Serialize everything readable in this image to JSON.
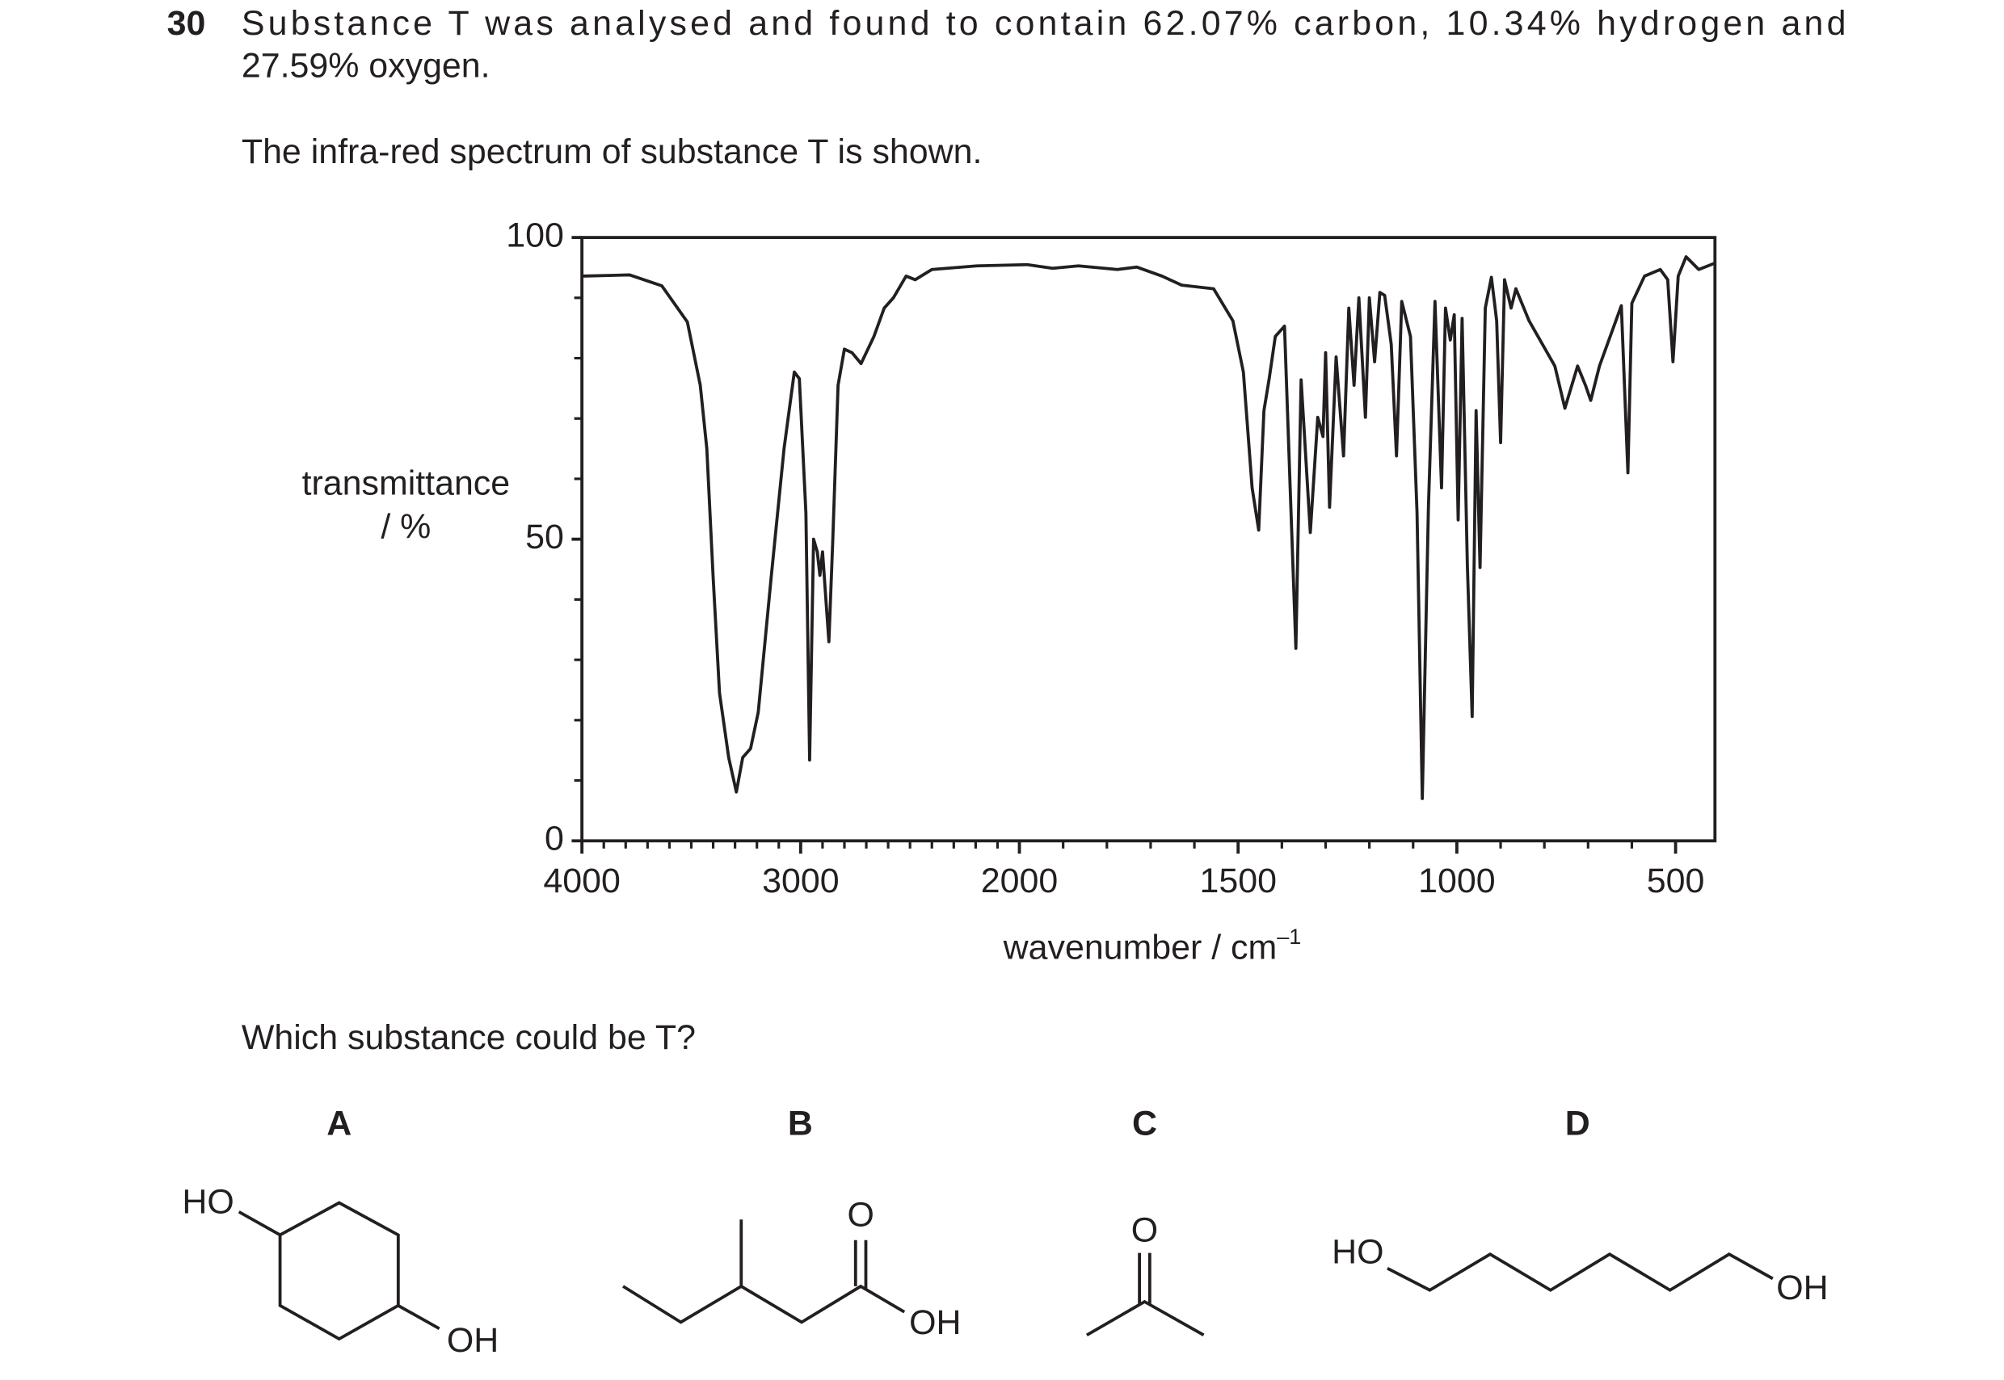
{
  "question": {
    "number": "30",
    "text": [
      "Substance T was analysed and found to contain 62.07% carbon, 10.34% hydrogen and",
      "27.59% oxygen."
    ],
    "intro": "The infra-red spectrum of substance T is shown.",
    "prompt": "Which substance could be T?"
  },
  "chart_data": {
    "type": "line",
    "color": "#231f20",
    "ylabel": [
      "transmittance",
      "/ %"
    ],
    "xlabel": "wavenumber / cm",
    "xlabel_superscript": "–1",
    "xlim": [
      4000,
      410
    ],
    "x_break": 2000,
    "x_break_scale": 2,
    "xticks": [
      4000,
      3000,
      2000,
      1500,
      1000,
      500
    ],
    "x_minor_ticks": [
      3900,
      3800,
      3700,
      3600,
      3500,
      3400,
      3300,
      3200,
      3100,
      2900,
      2800,
      2700,
      2600,
      2500,
      2400,
      2300,
      2200,
      2100,
      1900,
      1800,
      1700,
      1600,
      1400,
      1300,
      1200,
      1100,
      900,
      800,
      700,
      600
    ],
    "ylim": [
      0,
      100
    ],
    "yticks": [
      0,
      50,
      100
    ],
    "y_minor_ticks": [
      10,
      20,
      30,
      40,
      60,
      70,
      80,
      90
    ],
    "x": [
      4000,
      3782,
      3635,
      3518,
      3459,
      3429,
      3400,
      3371,
      3329,
      3294,
      3265,
      3229,
      3194,
      3135,
      3076,
      3029,
      3006,
      2976,
      2959,
      2941,
      2924,
      2912,
      2900,
      2871,
      2853,
      2829,
      2800,
      2765,
      2724,
      2665,
      2618,
      2576,
      2518,
      2476,
      2400,
      2194,
      1982,
      1924,
      1865,
      1776,
      1732,
      1674,
      1629,
      1556,
      1512,
      1488,
      1468,
      1453,
      1441,
      1429,
      1415,
      1394,
      1379,
      1368,
      1356,
      1335,
      1318,
      1306,
      1300,
      1291,
      1276,
      1259,
      1247,
      1235,
      1224,
      1209,
      1200,
      1188,
      1176,
      1165,
      1150,
      1138,
      1126,
      1106,
      1091,
      1079,
      1065,
      1050,
      1035,
      1026,
      1015,
      1006,
      997,
      988,
      976,
      965,
      956,
      947,
      935,
      921,
      909,
      900,
      891,
      876,
      865,
      835,
      776,
      753,
      724,
      706,
      694,
      674,
      624,
      609,
      600,
      571,
      535,
      518,
      506,
      494,
      476,
      447,
      412
    ],
    "values": [
      93.6,
      93.8,
      92,
      86,
      75.5,
      65,
      43.6,
      24.5,
      13.8,
      8.1,
      13.8,
      15.3,
      21.3,
      43.6,
      65,
      77.7,
      76.6,
      54.3,
      13.4,
      50,
      47.9,
      44,
      47.9,
      33,
      50,
      75.5,
      81.5,
      80.9,
      79.1,
      83.6,
      88.3,
      90,
      93.6,
      93,
      94.7,
      95.3,
      95.5,
      94.9,
      95.3,
      94.7,
      95.1,
      93.6,
      92.1,
      91.5,
      86.2,
      77.7,
      58.5,
      51.5,
      71.3,
      76.6,
      83.6,
      85.3,
      54.3,
      31.9,
      76.4,
      51.1,
      70.2,
      67,
      80.9,
      55.3,
      80.2,
      63.8,
      88.3,
      75.5,
      90,
      70.2,
      90,
      79.4,
      90.9,
      90.4,
      82.3,
      63.8,
      89.4,
      83.6,
      54.3,
      7,
      55.3,
      89.4,
      58.5,
      88.3,
      83,
      87.2,
      53.2,
      86.6,
      45.7,
      20.6,
      71.3,
      45.3,
      88.3,
      93.4,
      86.2,
      66,
      93,
      88.3,
      91.5,
      86.2,
      78.7,
      71.7,
      78.7,
      75.5,
      73,
      78.7,
      88.7,
      61,
      89.1,
      93.6,
      94.7,
      93,
      79.4,
      93.6,
      96.8,
      94.7,
      95.7
    ]
  },
  "options": [
    {
      "letter": "A",
      "labels": [
        "HO",
        "OH"
      ]
    },
    {
      "letter": "B",
      "labels": [
        "O",
        "OH"
      ]
    },
    {
      "letter": "C",
      "labels": [
        "O"
      ]
    },
    {
      "letter": "D",
      "labels": [
        "HO",
        "OH"
      ]
    }
  ]
}
